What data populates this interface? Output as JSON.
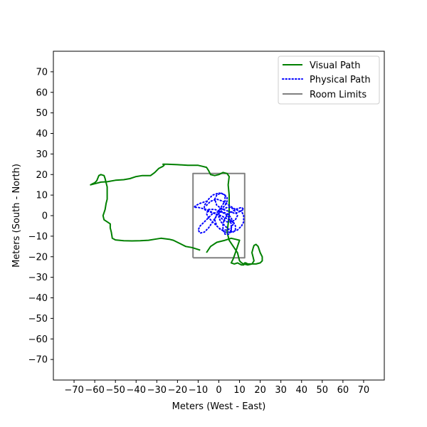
{
  "chart_data": {
    "type": "line",
    "title": "",
    "xlabel": "Meters (West - East)",
    "ylabel": "Meters (South - North)",
    "xlim": [
      -80,
      80
    ],
    "ylim": [
      -80,
      80
    ],
    "xticks": [
      -70,
      -60,
      -50,
      -40,
      -30,
      -20,
      -10,
      0,
      10,
      20,
      30,
      40,
      50,
      60,
      70
    ],
    "yticks": [
      -70,
      -60,
      -50,
      -40,
      -30,
      -20,
      -10,
      0,
      10,
      20,
      30,
      40,
      50,
      60,
      70
    ],
    "tick_label_minus": "−",
    "grid": false,
    "legend_position": "top-right",
    "series": [
      {
        "name": "Visual Path",
        "color": "#008000",
        "style": "solid",
        "points": [
          [
            -6,
            -18
          ],
          [
            -4,
            -15
          ],
          [
            -1,
            -13
          ],
          [
            3,
            -12
          ],
          [
            6,
            -11
          ],
          [
            8,
            -11.5
          ],
          [
            10,
            -12
          ],
          [
            9,
            -15
          ],
          [
            8,
            -18
          ],
          [
            7,
            -21
          ],
          [
            6,
            -23
          ],
          [
            7.5,
            -23.5
          ],
          [
            9,
            -23
          ],
          [
            10,
            -23.5
          ],
          [
            11,
            -24
          ],
          [
            12,
            -24
          ],
          [
            12.5,
            -23
          ],
          [
            13,
            -23
          ],
          [
            14,
            -23.5
          ],
          [
            16,
            -23.5
          ],
          [
            18,
            -23.5
          ],
          [
            20,
            -23
          ],
          [
            21,
            -22
          ],
          [
            21,
            -20
          ],
          [
            20,
            -18
          ],
          [
            19,
            -15
          ],
          [
            18,
            -14
          ],
          [
            17,
            -14.5
          ],
          [
            16.5,
            -16
          ],
          [
            16,
            -18
          ],
          [
            16.5,
            -20
          ],
          [
            17,
            -22
          ],
          [
            16,
            -23.5
          ],
          [
            14,
            -24
          ],
          [
            12,
            -23.5
          ],
          [
            11,
            -23
          ],
          [
            10,
            -22
          ],
          [
            9.5,
            -20
          ],
          [
            9,
            -18
          ],
          [
            7,
            -15
          ],
          [
            5,
            -12
          ],
          [
            4,
            -8
          ],
          [
            4.5,
            -4
          ],
          [
            5,
            0
          ],
          [
            5,
            5
          ],
          [
            5,
            10
          ],
          [
            4.5,
            15
          ],
          [
            5,
            19
          ],
          [
            4,
            20.5
          ],
          [
            2,
            21
          ],
          [
            0,
            20
          ],
          [
            -2,
            19.5
          ],
          [
            -4,
            20
          ],
          [
            -5,
            22
          ],
          [
            -6,
            23.5
          ],
          [
            -8,
            24
          ],
          [
            -10,
            24.5
          ],
          [
            -15,
            24.5
          ],
          [
            -20,
            24.8
          ],
          [
            -25,
            25
          ],
          [
            -27,
            25
          ],
          [
            -26.5,
            24.5
          ],
          [
            -27,
            24
          ],
          [
            -29,
            23
          ],
          [
            -31,
            21
          ],
          [
            -33,
            19.5
          ],
          [
            -37,
            19.5
          ],
          [
            -40,
            19
          ],
          [
            -43,
            18
          ],
          [
            -46,
            17.5
          ],
          [
            -50,
            17.2
          ],
          [
            -54,
            16.5
          ],
          [
            -57,
            16.3
          ],
          [
            -60,
            15.5
          ],
          [
            -62,
            15
          ],
          [
            -61,
            15.5
          ],
          [
            -60,
            16
          ],
          [
            -59,
            17
          ],
          [
            -58,
            19.5
          ],
          [
            -57,
            20
          ],
          [
            -55.5,
            19.5
          ],
          [
            -55,
            18
          ],
          [
            -54.5,
            16
          ],
          [
            -54,
            14
          ],
          [
            -54,
            12
          ],
          [
            -54,
            10
          ],
          [
            -54,
            8
          ],
          [
            -54.5,
            6
          ],
          [
            -55,
            3
          ],
          [
            -56,
            0
          ],
          [
            -55.5,
            -2
          ],
          [
            -54,
            -3
          ],
          [
            -52.5,
            -4
          ],
          [
            -52.5,
            -6
          ],
          [
            -52,
            -8
          ],
          [
            -51.5,
            -11
          ],
          [
            -50,
            -11.8
          ],
          [
            -46,
            -12.2
          ],
          [
            -42,
            -12.3
          ],
          [
            -38,
            -12.2
          ],
          [
            -34,
            -12
          ],
          [
            -31,
            -11.5
          ],
          [
            -28,
            -11
          ],
          [
            -24,
            -11.5
          ],
          [
            -22,
            -12
          ],
          [
            -20,
            -13
          ],
          [
            -18,
            -14
          ],
          [
            -16,
            -15
          ],
          [
            -13,
            -15.5
          ],
          [
            -10,
            -16.5
          ],
          [
            -9,
            -16.8
          ]
        ]
      },
      {
        "name": "Physical Path",
        "color": "#0000ff",
        "style": "dotted",
        "points": [
          [
            -6,
            5
          ],
          [
            -4,
            7
          ],
          [
            -1,
            8
          ],
          [
            2,
            7
          ],
          [
            5,
            5
          ],
          [
            8,
            3
          ],
          [
            11,
            2
          ],
          [
            12,
            0
          ],
          [
            12,
            -3
          ],
          [
            11,
            -5
          ],
          [
            9,
            -7
          ],
          [
            6,
            -8
          ],
          [
            3,
            -8
          ],
          [
            0,
            -6
          ],
          [
            -3,
            -3
          ],
          [
            -5,
            -1
          ],
          [
            -6,
            1
          ],
          [
            -5,
            3
          ],
          [
            -2,
            3
          ],
          [
            1,
            2
          ],
          [
            4,
            1
          ],
          [
            6,
            -1
          ],
          [
            7,
            -4
          ],
          [
            6,
            -6
          ],
          [
            4,
            -7
          ],
          [
            1,
            -7
          ],
          [
            -1,
            -5
          ],
          [
            -2,
            -2
          ],
          [
            -1,
            1
          ],
          [
            1,
            4
          ],
          [
            3,
            7
          ],
          [
            3,
            10
          ],
          [
            1,
            11
          ],
          [
            -1,
            10
          ],
          [
            -2,
            8
          ],
          [
            -1,
            5
          ],
          [
            2,
            3
          ],
          [
            5,
            2
          ],
          [
            8,
            1
          ],
          [
            10,
            2
          ],
          [
            12,
            3
          ],
          [
            11,
            4
          ],
          [
            8,
            3
          ],
          [
            5,
            1
          ],
          [
            3,
            -1
          ],
          [
            2,
            -4
          ],
          [
            2,
            -7
          ],
          [
            3,
            -9
          ],
          [
            5,
            -9
          ],
          [
            6,
            -7
          ],
          [
            6,
            -4
          ],
          [
            5,
            -1
          ],
          [
            3,
            1
          ],
          [
            0,
            2
          ],
          [
            -3,
            1
          ],
          [
            -5,
            -1
          ],
          [
            -7,
            -3
          ],
          [
            -9,
            -5
          ],
          [
            -10,
            -7
          ],
          [
            -9,
            -8.5
          ],
          [
            -7,
            -8
          ],
          [
            -5,
            -6
          ],
          [
            -3,
            -3
          ],
          [
            -1,
            0
          ],
          [
            1,
            3
          ],
          [
            3,
            5
          ],
          [
            4,
            7
          ],
          [
            4,
            9
          ],
          [
            2,
            10.5
          ],
          [
            0,
            11
          ],
          [
            -3,
            10
          ],
          [
            -5,
            8
          ],
          [
            -7,
            5
          ],
          [
            -7,
            3
          ],
          [
            -5,
            2
          ],
          [
            -2,
            1
          ],
          [
            1,
            0
          ],
          [
            3,
            -1
          ],
          [
            5,
            -2
          ],
          [
            7,
            -3
          ],
          [
            8,
            -5
          ],
          [
            8,
            -7
          ],
          [
            7,
            -8
          ],
          [
            5,
            -7
          ],
          [
            3,
            -5
          ],
          [
            1,
            -3
          ],
          [
            0,
            -1
          ],
          [
            0,
            1
          ],
          [
            2,
            3
          ],
          [
            4,
            4
          ],
          [
            6,
            4
          ],
          [
            8,
            2
          ],
          [
            9,
            0
          ],
          [
            8,
            -2
          ],
          [
            6,
            -3
          ],
          [
            4,
            -3
          ],
          [
            2,
            -2
          ],
          [
            0,
            0
          ],
          [
            -2,
            1
          ],
          [
            -4,
            2
          ],
          [
            -6,
            3
          ],
          [
            -8,
            3.5
          ],
          [
            -10,
            4
          ],
          [
            -12,
            4
          ],
          [
            -11,
            5
          ],
          [
            -9,
            6
          ],
          [
            -6,
            7
          ]
        ]
      },
      {
        "name": "Room Limits",
        "color": "#808080",
        "style": "solid",
        "points": [
          [
            -12.5,
            -20.5
          ],
          [
            12.5,
            -20.5
          ],
          [
            12.5,
            20.5
          ],
          [
            -12.5,
            20.5
          ],
          [
            -12.5,
            -20.5
          ]
        ]
      }
    ]
  }
}
